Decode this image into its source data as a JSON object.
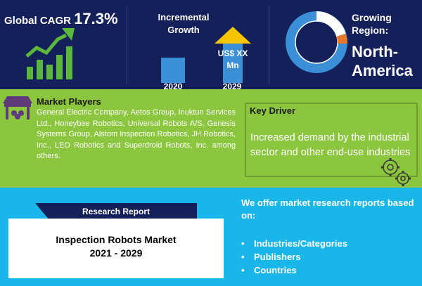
{
  "stats": {
    "cagr_label": "Global CAGR",
    "cagr_value": "17.3%",
    "growth_title": "Incremental Growth",
    "year_start": "2020",
    "year_end": "2029",
    "forecast_value": "US$ XX Mn",
    "region_label": "Growing Region:",
    "region_value": "North-America"
  },
  "players": {
    "title": "Market Players",
    "text": "General Electric Company, Aetos Group, Inuktun Services Ltd., Honeybee Robotics, Universal Robots A/S, Genesis Systems Group, Alstom Inspection Robotics, JH Robotics, Inc., LEO Robotics and Superdroid Robots, Inc. among others."
  },
  "driver": {
    "title": "Key Driver",
    "text": "Increased demand by the industrial sector and other end-use industries"
  },
  "report": {
    "tab": "Research Report",
    "title": "Inspection Robots Market",
    "years": "2021 - 2029"
  },
  "offer": {
    "text": "We offer market research reports based on:",
    "items": [
      "Industries/Categories",
      "Publishers",
      "Countries"
    ]
  },
  "colors": {
    "navy": "#13205a",
    "green": "#8cc63f",
    "cyan": "#19b6ea",
    "icon_green": "#5cb83a",
    "donut_blue": "#3b8fd6",
    "arrow_yellow": "#f6c400"
  }
}
